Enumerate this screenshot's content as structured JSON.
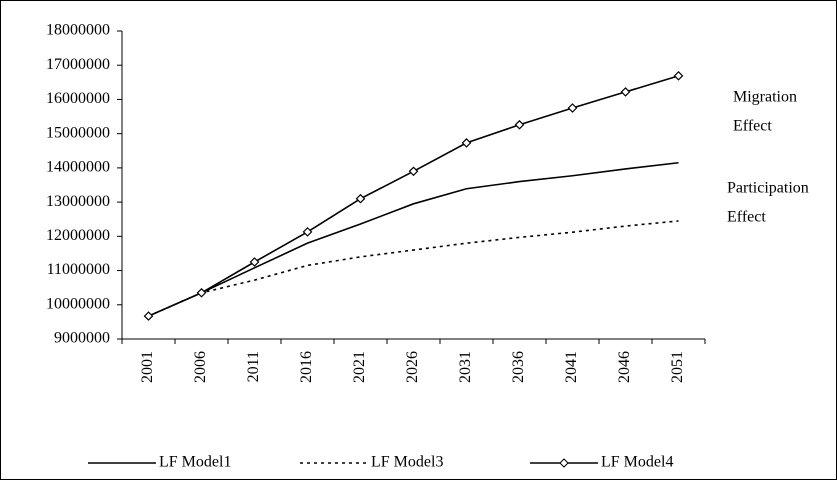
{
  "chart_data": {
    "type": "line",
    "categories": [
      "2001",
      "2006",
      "2011",
      "2016",
      "2021",
      "2026",
      "2031",
      "2036",
      "2041",
      "2046",
      "2051"
    ],
    "series": [
      {
        "name": "LF Model1",
        "color": "#000000",
        "dash": "solid",
        "marker": "none",
        "values": [
          9670000,
          10350000,
          11080000,
          11800000,
          12360000,
          12950000,
          13390000,
          13600000,
          13770000,
          13970000,
          14150000
        ]
      },
      {
        "name": "LF Model3",
        "color": "#000000",
        "dash": "dotted",
        "marker": "none",
        "values": [
          9670000,
          10350000,
          10720000,
          11150000,
          11400000,
          11600000,
          11800000,
          11970000,
          12120000,
          12300000,
          12450000
        ]
      },
      {
        "name": "LF Model4",
        "color": "#000000",
        "dash": "solid",
        "marker": "diamond",
        "values": [
          9670000,
          10350000,
          11250000,
          12130000,
          13100000,
          13900000,
          14730000,
          15260000,
          15750000,
          16220000,
          16690000
        ]
      }
    ],
    "ylim": [
      9000000,
      18000000
    ],
    "yticks": [
      9000000,
      10000000,
      11000000,
      12000000,
      13000000,
      14000000,
      15000000,
      16000000,
      17000000,
      18000000
    ],
    "grid": false,
    "legend": "bottom",
    "annotations": [
      [
        "Migration",
        "Effect"
      ],
      [
        "Participation",
        "Effect"
      ]
    ]
  }
}
